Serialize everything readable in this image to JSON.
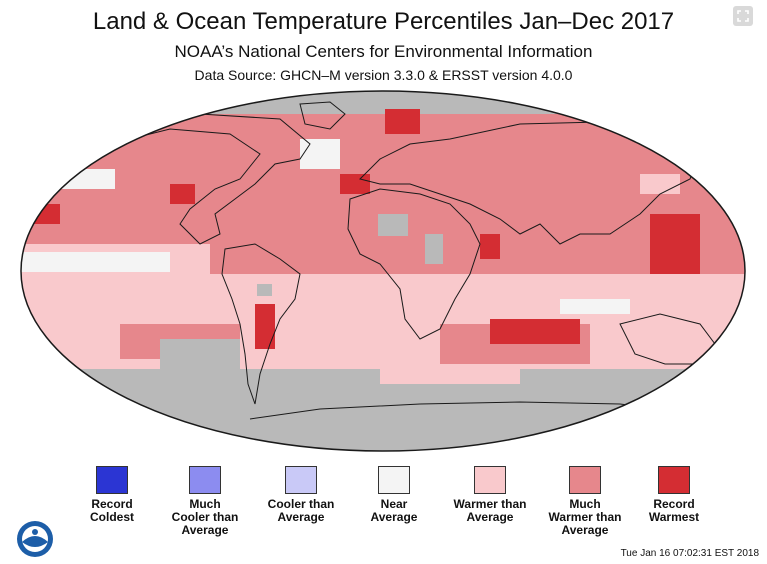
{
  "header": {
    "title": "Land & Ocean Temperature Percentiles Jan–Dec 2017",
    "subtitle": "NOAA’s National Centers for Environmental Information",
    "source": "Data Source: GHCN–M version 3.3.0 & ERSST version 4.0.0"
  },
  "controls": {
    "expand_icon": "expand-icon"
  },
  "map": {
    "projection": "robinson-like",
    "colors": {
      "record_coldest": "#2b35d3",
      "much_cooler": "#8c8cf0",
      "cooler": "#c9c9f7",
      "near": "#f4f4f4",
      "warmer": "#f9c9cc",
      "much_warmer": "#e6878c",
      "record_warmest": "#d42d33",
      "no_data": "#b9b9b9"
    }
  },
  "legend": {
    "items": [
      {
        "label": "Record\nColdest",
        "color": "#2b35d3"
      },
      {
        "label": "Much\nCooler than\nAverage",
        "color": "#8c8cf0"
      },
      {
        "label": "Cooler than\nAverage",
        "color": "#c9c9f7"
      },
      {
        "label": "Near\nAverage",
        "color": "#f4f4f4"
      },
      {
        "label": "Warmer than\nAverage",
        "color": "#f9c9cc"
      },
      {
        "label": "Much\nWarmer than\nAverage",
        "color": "#e6878c"
      },
      {
        "label": "Record\nWarmest",
        "color": "#d42d33"
      }
    ]
  },
  "footer": {
    "logo_text": "NOAA",
    "timestamp": "Tue Jan 16 07:02:31 EST 2018"
  }
}
